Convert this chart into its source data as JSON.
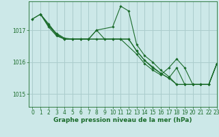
{
  "background_color": "#cce8e8",
  "grid_color": "#aacccc",
  "line_color": "#1a6b2a",
  "marker_color": "#1a6b2a",
  "xlabel": "Graphe pression niveau de la mer (hPa)",
  "xlabel_fontsize": 6.5,
  "tick_fontsize": 5.5,
  "ylim": [
    1014.6,
    1017.9
  ],
  "xlim": [
    -0.5,
    23
  ],
  "yticks": [
    1015,
    1016,
    1017
  ],
  "xticks": [
    0,
    1,
    2,
    3,
    4,
    5,
    6,
    7,
    8,
    9,
    10,
    11,
    12,
    13,
    14,
    15,
    16,
    17,
    18,
    19,
    20,
    21,
    22,
    23
  ],
  "lines": [
    {
      "x": [
        0,
        1,
        2,
        3,
        4,
        5,
        6,
        7,
        8,
        10,
        11,
        12,
        13,
        14,
        15,
        16,
        17,
        18,
        19,
        20,
        21,
        22,
        23
      ],
      "y": [
        1017.35,
        1017.5,
        1017.15,
        1016.9,
        1016.75,
        1016.72,
        1016.72,
        1016.72,
        1017.0,
        1017.1,
        1017.75,
        1017.6,
        1016.55,
        1016.2,
        1016.0,
        1015.75,
        1015.55,
        1015.3,
        1015.3,
        1015.3,
        1015.3,
        1015.3,
        1015.95
      ]
    },
    {
      "x": [
        0,
        1,
        2,
        3,
        4,
        5,
        6,
        7,
        8,
        9,
        10,
        11,
        12,
        13,
        14,
        15,
        16,
        17,
        18,
        19,
        20,
        21,
        22,
        23
      ],
      "y": [
        1017.35,
        1017.5,
        1017.1,
        1016.82,
        1016.72,
        1016.72,
        1016.72,
        1016.72,
        1016.72,
        1016.72,
        1016.72,
        1016.72,
        1016.72,
        1016.35,
        1016.05,
        1015.85,
        1015.65,
        1015.5,
        1015.3,
        1015.3,
        1015.3,
        1015.3,
        1015.3,
        1015.95
      ]
    },
    {
      "x": [
        1,
        2,
        3,
        4,
        5,
        6,
        7,
        8,
        9,
        10,
        11,
        13,
        14,
        15,
        16,
        17,
        18,
        19,
        20,
        21,
        22,
        23
      ],
      "y": [
        1017.5,
        1017.15,
        1016.85,
        1016.72,
        1016.72,
        1016.72,
        1016.72,
        1017.0,
        1016.72,
        1016.72,
        1016.72,
        1016.25,
        1015.95,
        1015.75,
        1015.6,
        1015.82,
        1016.1,
        1015.82,
        1015.3,
        1015.3,
        1015.3,
        1015.95
      ]
    },
    {
      "x": [
        1,
        2,
        3,
        4,
        5,
        6,
        7,
        10,
        11,
        12,
        13,
        14,
        15,
        16,
        17,
        18,
        19,
        20,
        21,
        22,
        23
      ],
      "y": [
        1017.5,
        1017.2,
        1016.88,
        1016.72,
        1016.72,
        1016.72,
        1016.72,
        1016.72,
        1016.72,
        1016.72,
        1016.35,
        1016.05,
        1015.82,
        1015.65,
        1015.5,
        1015.82,
        1015.3,
        1015.3,
        1015.3,
        1015.3,
        1015.95
      ]
    }
  ]
}
